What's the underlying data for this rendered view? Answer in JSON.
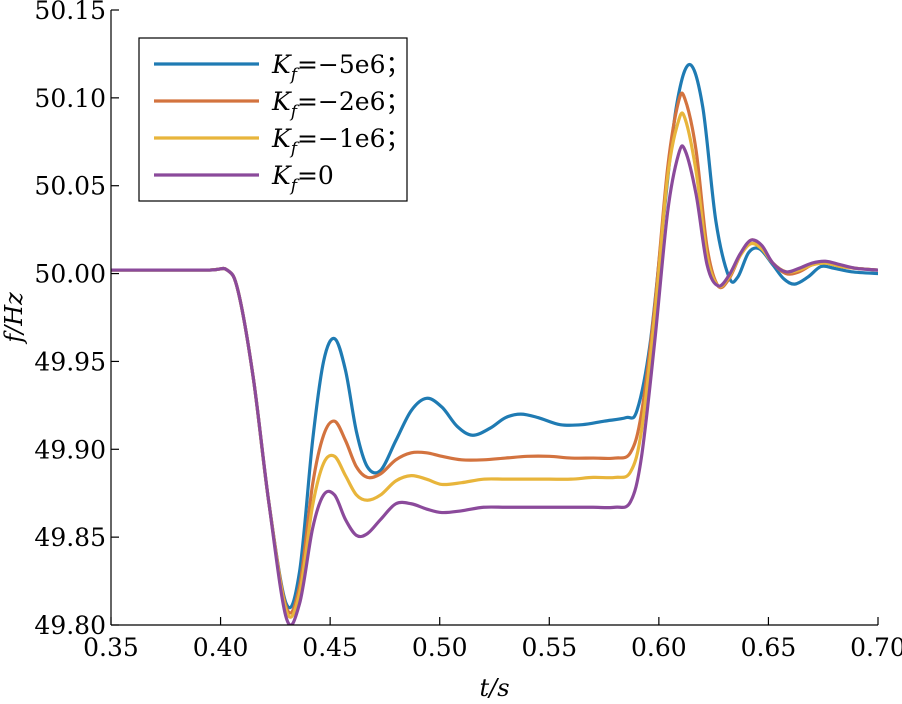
{
  "chart_data": {
    "type": "line",
    "xlabel": "t/s",
    "ylabel": "f/Hz",
    "xlim": [
      0.35,
      0.7
    ],
    "ylim": [
      49.8,
      50.15
    ],
    "xticks": [
      "0.35",
      "0.40",
      "0.45",
      "0.50",
      "0.55",
      "0.60",
      "0.65",
      "0.70"
    ],
    "yticks": [
      "49.80",
      "49.85",
      "49.90",
      "49.95",
      "50.00",
      "50.05",
      "50.10",
      "50.15"
    ],
    "legend_position": "top-left",
    "grid": false,
    "series": [
      {
        "name": "K_f=−5e6；",
        "legend": {
          "sym": "K",
          "sub": "f",
          "rest": "=−5e6；"
        },
        "color": "#1f7bb3",
        "points": [
          [
            0.35,
            50.002
          ],
          [
            0.37,
            50.002
          ],
          [
            0.395,
            50.002
          ],
          [
            0.403,
            50.002
          ],
          [
            0.408,
            49.99
          ],
          [
            0.415,
            49.94
          ],
          [
            0.422,
            49.87
          ],
          [
            0.43,
            49.812
          ],
          [
            0.436,
            49.83
          ],
          [
            0.442,
            49.905
          ],
          [
            0.447,
            49.95
          ],
          [
            0.452,
            49.963
          ],
          [
            0.457,
            49.945
          ],
          [
            0.462,
            49.91
          ],
          [
            0.467,
            49.89
          ],
          [
            0.473,
            49.888
          ],
          [
            0.48,
            49.905
          ],
          [
            0.487,
            49.922
          ],
          [
            0.494,
            49.929
          ],
          [
            0.501,
            49.924
          ],
          [
            0.508,
            49.913
          ],
          [
            0.515,
            49.908
          ],
          [
            0.523,
            49.912
          ],
          [
            0.53,
            49.918
          ],
          [
            0.537,
            49.92
          ],
          [
            0.545,
            49.918
          ],
          [
            0.555,
            49.914
          ],
          [
            0.565,
            49.914
          ],
          [
            0.575,
            49.916
          ],
          [
            0.585,
            49.918
          ],
          [
            0.59,
            49.922
          ],
          [
            0.596,
            49.96
          ],
          [
            0.602,
            50.03
          ],
          [
            0.608,
            50.095
          ],
          [
            0.614,
            50.119
          ],
          [
            0.62,
            50.095
          ],
          [
            0.626,
            50.03
          ],
          [
            0.632,
            49.998
          ],
          [
            0.636,
            49.998
          ],
          [
            0.641,
            50.012
          ],
          [
            0.646,
            50.014
          ],
          [
            0.652,
            50.005
          ],
          [
            0.657,
            49.997
          ],
          [
            0.662,
            49.994
          ],
          [
            0.668,
            49.998
          ],
          [
            0.674,
            50.004
          ],
          [
            0.68,
            50.003
          ],
          [
            0.688,
            50.001
          ],
          [
            0.7,
            50.0
          ]
        ]
      },
      {
        "name": "K_f=−2e6；",
        "legend": {
          "sym": "K",
          "sub": "f",
          "rest": "=−2e6；"
        },
        "color": "#d3733f",
        "points": [
          [
            0.35,
            50.002
          ],
          [
            0.37,
            50.002
          ],
          [
            0.395,
            50.002
          ],
          [
            0.403,
            50.002
          ],
          [
            0.408,
            49.99
          ],
          [
            0.415,
            49.94
          ],
          [
            0.422,
            49.87
          ],
          [
            0.43,
            49.81
          ],
          [
            0.436,
            49.822
          ],
          [
            0.442,
            49.88
          ],
          [
            0.447,
            49.908
          ],
          [
            0.452,
            49.916
          ],
          [
            0.457,
            49.905
          ],
          [
            0.462,
            49.89
          ],
          [
            0.467,
            49.884
          ],
          [
            0.473,
            49.886
          ],
          [
            0.48,
            49.894
          ],
          [
            0.487,
            49.898
          ],
          [
            0.494,
            49.898
          ],
          [
            0.501,
            49.896
          ],
          [
            0.51,
            49.894
          ],
          [
            0.52,
            49.894
          ],
          [
            0.53,
            49.895
          ],
          [
            0.54,
            49.896
          ],
          [
            0.55,
            49.896
          ],
          [
            0.56,
            49.895
          ],
          [
            0.57,
            49.895
          ],
          [
            0.58,
            49.895
          ],
          [
            0.587,
            49.898
          ],
          [
            0.592,
            49.92
          ],
          [
            0.598,
            49.98
          ],
          [
            0.604,
            50.06
          ],
          [
            0.609,
            50.098
          ],
          [
            0.612,
            50.099
          ],
          [
            0.617,
            50.07
          ],
          [
            0.622,
            50.015
          ],
          [
            0.627,
            49.993
          ],
          [
            0.632,
            49.997
          ],
          [
            0.637,
            50.01
          ],
          [
            0.642,
            50.019
          ],
          [
            0.647,
            50.015
          ],
          [
            0.652,
            50.006
          ],
          [
            0.658,
            50.0
          ],
          [
            0.664,
            50.001
          ],
          [
            0.67,
            50.005
          ],
          [
            0.676,
            50.006
          ],
          [
            0.683,
            50.004
          ],
          [
            0.69,
            50.003
          ],
          [
            0.7,
            50.002
          ]
        ]
      },
      {
        "name": "K_f=−1e6；",
        "legend": {
          "sym": "K",
          "sub": "f",
          "rest": "=−1e6；"
        },
        "color": "#e8b53b",
        "points": [
          [
            0.35,
            50.002
          ],
          [
            0.37,
            50.002
          ],
          [
            0.395,
            50.002
          ],
          [
            0.403,
            50.002
          ],
          [
            0.408,
            49.99
          ],
          [
            0.415,
            49.94
          ],
          [
            0.422,
            49.87
          ],
          [
            0.43,
            49.808
          ],
          [
            0.436,
            49.818
          ],
          [
            0.442,
            49.868
          ],
          [
            0.447,
            49.892
          ],
          [
            0.452,
            49.896
          ],
          [
            0.457,
            49.885
          ],
          [
            0.462,
            49.874
          ],
          [
            0.467,
            49.871
          ],
          [
            0.473,
            49.874
          ],
          [
            0.48,
            49.882
          ],
          [
            0.487,
            49.885
          ],
          [
            0.494,
            49.883
          ],
          [
            0.501,
            49.88
          ],
          [
            0.51,
            49.881
          ],
          [
            0.52,
            49.883
          ],
          [
            0.53,
            49.883
          ],
          [
            0.54,
            49.883
          ],
          [
            0.55,
            49.883
          ],
          [
            0.56,
            49.883
          ],
          [
            0.57,
            49.884
          ],
          [
            0.58,
            49.884
          ],
          [
            0.587,
            49.887
          ],
          [
            0.592,
            49.91
          ],
          [
            0.598,
            49.975
          ],
          [
            0.604,
            50.055
          ],
          [
            0.609,
            50.087
          ],
          [
            0.612,
            50.088
          ],
          [
            0.617,
            50.058
          ],
          [
            0.622,
            50.01
          ],
          [
            0.627,
            49.993
          ],
          [
            0.632,
            49.998
          ],
          [
            0.637,
            50.01
          ],
          [
            0.642,
            50.017
          ],
          [
            0.647,
            50.014
          ],
          [
            0.652,
            50.006
          ],
          [
            0.658,
            50.001
          ],
          [
            0.664,
            50.002
          ],
          [
            0.67,
            50.005
          ],
          [
            0.676,
            50.006
          ],
          [
            0.683,
            50.004
          ],
          [
            0.69,
            50.003
          ],
          [
            0.7,
            50.002
          ]
        ]
      },
      {
        "name": "K_f=0",
        "legend": {
          "sym": "K",
          "sub": "f",
          "rest": "=0"
        },
        "color": "#8b4a9b",
        "points": [
          [
            0.35,
            50.002
          ],
          [
            0.37,
            50.002
          ],
          [
            0.395,
            50.002
          ],
          [
            0.403,
            50.002
          ],
          [
            0.408,
            49.99
          ],
          [
            0.415,
            49.94
          ],
          [
            0.422,
            49.87
          ],
          [
            0.43,
            49.804
          ],
          [
            0.436,
            49.812
          ],
          [
            0.442,
            49.855
          ],
          [
            0.447,
            49.874
          ],
          [
            0.452,
            49.874
          ],
          [
            0.457,
            49.86
          ],
          [
            0.462,
            49.851
          ],
          [
            0.467,
            49.852
          ],
          [
            0.473,
            49.86
          ],
          [
            0.48,
            49.869
          ],
          [
            0.487,
            49.869
          ],
          [
            0.494,
            49.866
          ],
          [
            0.501,
            49.864
          ],
          [
            0.51,
            49.865
          ],
          [
            0.52,
            49.867
          ],
          [
            0.53,
            49.867
          ],
          [
            0.54,
            49.867
          ],
          [
            0.55,
            49.867
          ],
          [
            0.56,
            49.867
          ],
          [
            0.57,
            49.867
          ],
          [
            0.58,
            49.867
          ],
          [
            0.587,
            49.87
          ],
          [
            0.592,
            49.895
          ],
          [
            0.598,
            49.96
          ],
          [
            0.604,
            50.035
          ],
          [
            0.609,
            50.068
          ],
          [
            0.612,
            50.07
          ],
          [
            0.617,
            50.045
          ],
          [
            0.622,
            50.005
          ],
          [
            0.627,
            49.993
          ],
          [
            0.632,
            49.999
          ],
          [
            0.637,
            50.011
          ],
          [
            0.642,
            50.019
          ],
          [
            0.647,
            50.016
          ],
          [
            0.652,
            50.006
          ],
          [
            0.658,
            50.001
          ],
          [
            0.664,
            50.003
          ],
          [
            0.67,
            50.006
          ],
          [
            0.676,
            50.007
          ],
          [
            0.683,
            50.005
          ],
          [
            0.69,
            50.003
          ],
          [
            0.7,
            50.002
          ]
        ]
      }
    ]
  }
}
